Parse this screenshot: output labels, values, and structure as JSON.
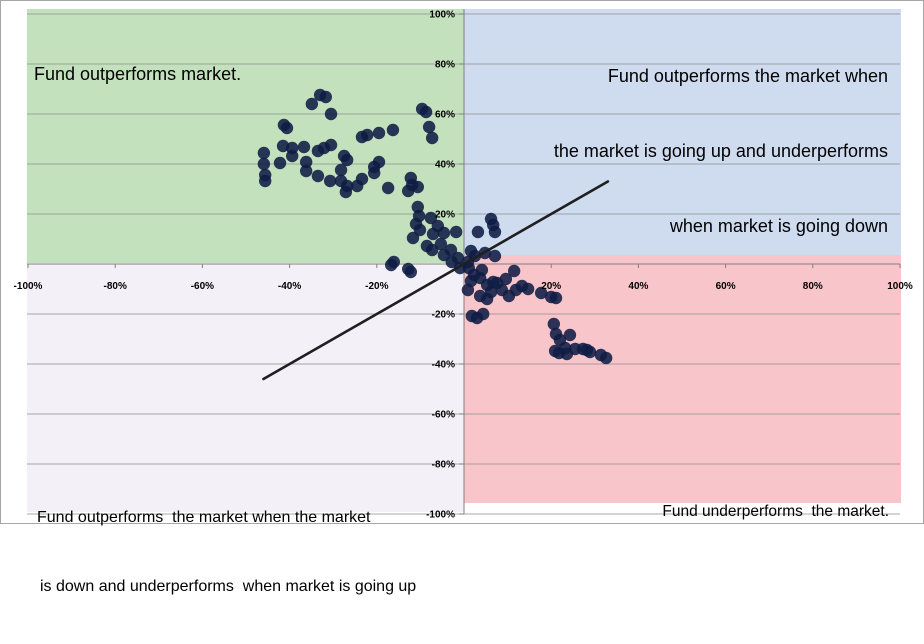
{
  "chart_data": {
    "type": "scatter",
    "title": "",
    "xlabel": "",
    "ylabel": "",
    "xlim": [
      -100,
      100
    ],
    "ylim": [
      -100,
      100
    ],
    "grid": "horizontal",
    "x_ticks": [
      {
        "value": -100,
        "label": "-100%"
      },
      {
        "value": -80,
        "label": "-80%"
      },
      {
        "value": -60,
        "label": "-60%"
      },
      {
        "value": -40,
        "label": "-40%"
      },
      {
        "value": -20,
        "label": "-20%"
      },
      {
        "value": 20,
        "label": "20%"
      },
      {
        "value": 40,
        "label": "40%"
      },
      {
        "value": 60,
        "label": "60%"
      },
      {
        "value": 80,
        "label": "80%"
      },
      {
        "value": 100,
        "label": "100%"
      }
    ],
    "y_ticks": [
      {
        "value": 100,
        "label": "100%"
      },
      {
        "value": 80,
        "label": "80%"
      },
      {
        "value": 60,
        "label": "60%"
      },
      {
        "value": 40,
        "label": "40%"
      },
      {
        "value": 20,
        "label": "20%"
      },
      {
        "value": -20,
        "label": "-20%"
      },
      {
        "value": -40,
        "label": "-40%"
      },
      {
        "value": -60,
        "label": "-60%"
      },
      {
        "value": -80,
        "label": "-80%"
      },
      {
        "value": -100,
        "label": "-100%"
      }
    ],
    "quadrant_colors": {
      "top_left": "#c4e1bd",
      "top_right": "#cfdcef",
      "bottom_right": "#f8c6ca",
      "bottom_left": "#f3f1f7"
    },
    "point_color": "#0f1c44",
    "trendline_color": "#1f1f1f",
    "trendline": {
      "x": [
        -46,
        33
      ],
      "y": [
        -46,
        33
      ]
    },
    "annotations": {
      "top_left": [
        "Fund outperforms market."
      ],
      "top_right": [
        "Fund outperforms the market when",
        "the market is going up and underperforms",
        "when market is going down"
      ],
      "bottom_left": [
        "Fund outperforms  the market when the market",
        "is down and underperforms  when market is going up"
      ],
      "bottom_right": [
        "Fund underperforms  the market."
      ]
    },
    "series": [
      {
        "points": [
          [
            -33.0,
            67.6
          ],
          [
            -31.7,
            66.8
          ],
          [
            -34.9,
            64.0
          ],
          [
            -30.5,
            60.0
          ],
          [
            -9.6,
            62.0
          ],
          [
            -8.7,
            60.8
          ],
          [
            -41.3,
            55.6
          ],
          [
            -40.6,
            54.4
          ],
          [
            -16.3,
            53.6
          ],
          [
            -19.5,
            52.4
          ],
          [
            -22.2,
            51.6
          ],
          [
            -23.4,
            50.8
          ],
          [
            -8.0,
            54.8
          ],
          [
            -7.3,
            50.4
          ],
          [
            -45.9,
            44.4
          ],
          [
            -41.5,
            47.2
          ],
          [
            -39.4,
            46.4
          ],
          [
            -36.7,
            46.8
          ],
          [
            -33.5,
            45.2
          ],
          [
            -32.1,
            46.4
          ],
          [
            -30.5,
            47.6
          ],
          [
            -39.4,
            43.2
          ],
          [
            -42.2,
            40.4
          ],
          [
            -36.2,
            40.8
          ],
          [
            -27.5,
            43.2
          ],
          [
            -26.8,
            41.6
          ],
          [
            -28.2,
            37.6
          ],
          [
            -19.5,
            40.8
          ],
          [
            -20.6,
            38.8
          ],
          [
            -45.9,
            40.0
          ],
          [
            -45.6,
            35.6
          ],
          [
            -45.6,
            33.2
          ],
          [
            -36.2,
            37.2
          ],
          [
            -33.5,
            35.2
          ],
          [
            -30.7,
            33.2
          ],
          [
            -28.2,
            33.2
          ],
          [
            -26.8,
            31.2
          ],
          [
            -27.1,
            28.8
          ],
          [
            -24.5,
            31.2
          ],
          [
            -23.4,
            34.0
          ],
          [
            -20.6,
            36.4
          ],
          [
            -17.4,
            30.4
          ],
          [
            -12.2,
            34.4
          ],
          [
            -11.9,
            31.6
          ],
          [
            -10.6,
            30.8
          ],
          [
            -12.8,
            29.2
          ],
          [
            -10.6,
            22.8
          ],
          [
            -10.3,
            19.2
          ],
          [
            -11.0,
            16.0
          ],
          [
            -7.6,
            18.4
          ],
          [
            -10.1,
            13.6
          ],
          [
            -11.7,
            10.4
          ],
          [
            -7.1,
            12.0
          ],
          [
            -6.0,
            15.2
          ],
          [
            -4.6,
            12.4
          ],
          [
            -8.5,
            7.2
          ],
          [
            -7.3,
            5.6
          ],
          [
            -5.3,
            8.0
          ],
          [
            -3.0,
            5.6
          ],
          [
            -4.6,
            3.6
          ],
          [
            -1.4,
            2.4
          ],
          [
            -1.8,
            12.8
          ],
          [
            -16.1,
            0.8
          ],
          [
            -16.7,
            -0.4
          ],
          [
            -12.8,
            -2.0
          ],
          [
            -12.2,
            -3.2
          ],
          [
            -0.9,
            -1.6
          ],
          [
            -2.8,
            0.8
          ],
          [
            3.2,
            12.8
          ],
          [
            6.2,
            18.0
          ],
          [
            6.7,
            15.6
          ],
          [
            7.1,
            12.8
          ],
          [
            1.6,
            5.2
          ],
          [
            2.5,
            3.2
          ],
          [
            4.8,
            4.4
          ],
          [
            7.1,
            3.2
          ],
          [
            0.9,
            0.8
          ],
          [
            1.1,
            -1.6
          ],
          [
            2.3,
            -4.4
          ],
          [
            4.1,
            -2.4
          ],
          [
            1.6,
            -6.8
          ],
          [
            0.9,
            -10.4
          ],
          [
            3.7,
            -5.6
          ],
          [
            5.3,
            -8.4
          ],
          [
            6.2,
            -11.2
          ],
          [
            7.6,
            -7.6
          ],
          [
            8.7,
            -10.4
          ],
          [
            9.6,
            -6.0
          ],
          [
            11.5,
            -2.8
          ],
          [
            10.3,
            -12.8
          ],
          [
            11.9,
            -10.4
          ],
          [
            13.3,
            -8.8
          ],
          [
            14.7,
            -10.0
          ],
          [
            3.7,
            -12.8
          ],
          [
            5.3,
            -14.0
          ],
          [
            1.8,
            -20.8
          ],
          [
            3.0,
            -21.6
          ],
          [
            4.4,
            -20.0
          ],
          [
            17.7,
            -11.6
          ],
          [
            20.0,
            -13.2
          ],
          [
            21.1,
            -13.6
          ],
          [
            20.6,
            -24.0
          ],
          [
            21.1,
            -28.0
          ],
          [
            22.0,
            -30.4
          ],
          [
            24.3,
            -28.4
          ],
          [
            20.9,
            -34.8
          ],
          [
            21.8,
            -35.6
          ],
          [
            23.2,
            -33.6
          ],
          [
            23.6,
            -36.0
          ],
          [
            25.5,
            -34.0
          ],
          [
            27.3,
            -34.0
          ],
          [
            28.2,
            -34.4
          ],
          [
            28.9,
            -35.2
          ],
          [
            31.4,
            -36.4
          ],
          [
            32.6,
            -37.6
          ],
          [
            6.7,
            -7.2
          ]
        ]
      }
    ]
  }
}
